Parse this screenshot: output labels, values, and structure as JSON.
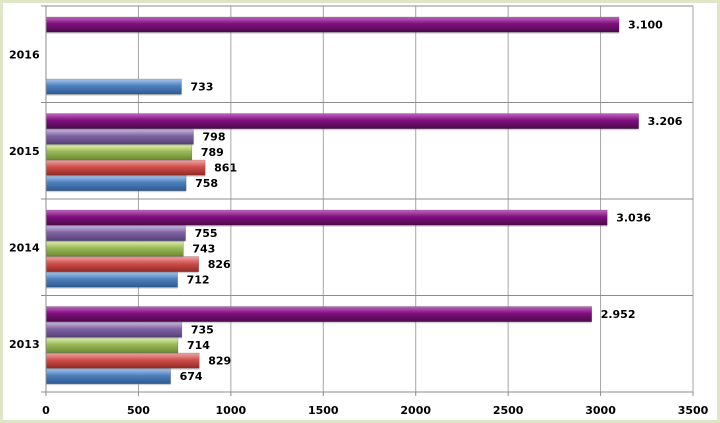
{
  "chart_data": {
    "type": "bar",
    "orientation": "horizontal",
    "title": "",
    "xlabel": "",
    "ylabel": "",
    "xlim": [
      0,
      3500
    ],
    "x_ticks": [
      "0",
      "500",
      "1000",
      "1500",
      "2000",
      "2500",
      "3000",
      "3500"
    ],
    "tick_values": [
      0,
      500,
      1000,
      1500,
      2000,
      2500,
      3000,
      3500
    ],
    "grid": true,
    "legend": "none",
    "categories": [
      "2013",
      "2014",
      "2015",
      "2016"
    ],
    "series": [
      {
        "name": "series-blue",
        "color": "#4f81bd",
        "values": [
          674,
          712,
          758,
          733
        ],
        "labels": [
          "674",
          "712",
          "758",
          "733"
        ]
      },
      {
        "name": "series-red",
        "color": "#c0504d",
        "values": [
          829,
          826,
          861,
          null
        ],
        "labels": [
          "829",
          "826",
          "861",
          ""
        ]
      },
      {
        "name": "series-green",
        "color": "#9bbb59",
        "values": [
          714,
          743,
          789,
          null
        ],
        "labels": [
          "714",
          "743",
          "789",
          ""
        ]
      },
      {
        "name": "series-lilac",
        "color": "#8064a2",
        "values": [
          735,
          755,
          798,
          null
        ],
        "labels": [
          "735",
          "755",
          "798",
          ""
        ]
      },
      {
        "name": "series-purple",
        "color": "#7f0f7e",
        "values": [
          2952,
          3036,
          3206,
          3100
        ],
        "labels": [
          "2.952",
          "3.036",
          "3.206",
          "3.100"
        ]
      }
    ]
  }
}
